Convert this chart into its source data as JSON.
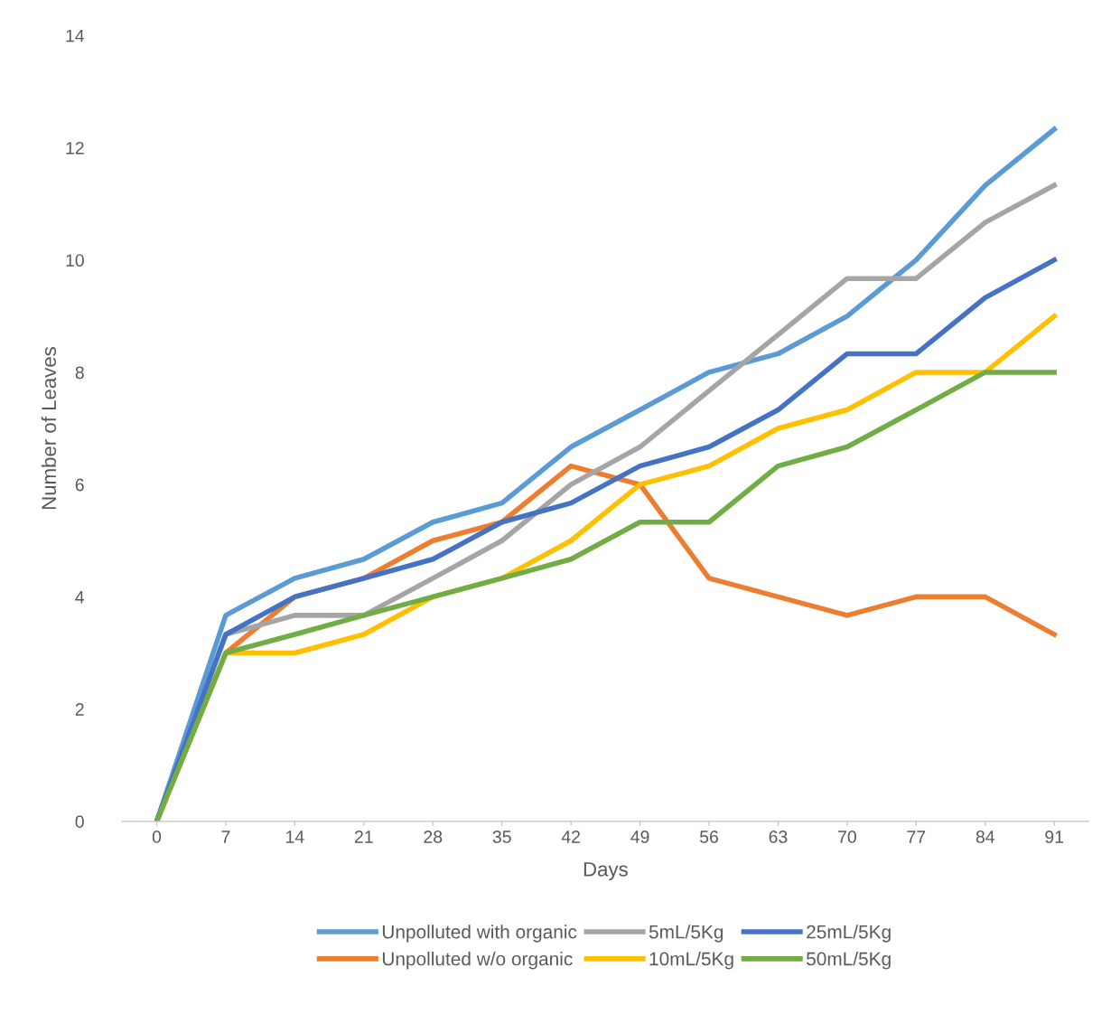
{
  "chart_data": {
    "type": "line",
    "xlabel": "Days",
    "ylabel": "Number of Leaves",
    "categories": [
      "0",
      "7",
      "14",
      "21",
      "28",
      "35",
      "42",
      "49",
      "56",
      "63",
      "70",
      "77",
      "84",
      "91"
    ],
    "ylim": [
      0,
      14
    ],
    "yticks": [
      0,
      2,
      4,
      6,
      8,
      10,
      12,
      14
    ],
    "grid": false,
    "legend": "bottom",
    "marker": "none",
    "line_style": "solid",
    "series": [
      {
        "name": "Unpolluted with organic",
        "color": "#5b9bd5",
        "values": [
          0,
          3.67,
          4.33,
          4.67,
          5.33,
          5.67,
          6.67,
          7.33,
          8,
          8.33,
          9,
          10,
          11.33,
          12.33
        ]
      },
      {
        "name": "Unpolluted w/o organic",
        "color": "#ed7d31",
        "values": [
          0,
          3,
          4,
          4.33,
          5,
          5.33,
          6.33,
          6,
          4.33,
          4,
          3.67,
          4,
          4,
          3.33
        ]
      },
      {
        "name": "5mL/5Kg",
        "color": "#a5a5a5",
        "values": [
          0,
          3.33,
          3.67,
          3.67,
          4.33,
          5,
          6,
          6.67,
          7.67,
          8.67,
          9.67,
          9.67,
          10.67,
          11.33
        ]
      },
      {
        "name": "10mL/5Kg",
        "color": "#ffc000",
        "values": [
          0,
          3,
          3,
          3.33,
          4,
          4.33,
          5,
          6,
          6.33,
          7,
          7.33,
          8,
          8,
          9
        ]
      },
      {
        "name": "25mL/5Kg",
        "color": "#4472c4",
        "values": [
          0,
          3.33,
          4,
          4.33,
          4.67,
          5.33,
          5.67,
          6.33,
          6.67,
          7.33,
          8.33,
          8.33,
          9.33,
          10
        ]
      },
      {
        "name": "50mL/5Kg",
        "color": "#70ad47",
        "values": [
          0,
          3,
          3.33,
          3.67,
          4,
          4.33,
          4.67,
          5.33,
          5.33,
          6.33,
          6.67,
          7.33,
          8,
          8
        ]
      }
    ]
  }
}
